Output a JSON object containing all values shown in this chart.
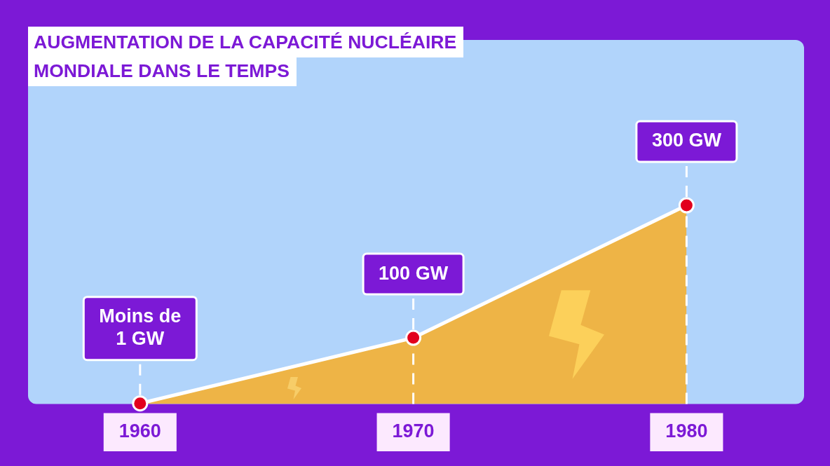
{
  "chart_data": {
    "type": "area",
    "title": "AUGMENTATION DE LA CAPACITÉ NUCLÉAIRE MONDIALE DANS LE TEMPS",
    "x": [
      1960,
      1970,
      1980
    ],
    "values": [
      1,
      100,
      300
    ],
    "value_labels": [
      "Moins de 1 GW",
      "100 GW",
      "300 GW"
    ],
    "color": "#eeb446",
    "xlim": [
      1955.9,
      1984.3
    ],
    "xticks": [
      1960,
      1970,
      1980
    ],
    "tick_labels": "x",
    "marker": "circle",
    "ref_lines": [
      {
        "axis": "x",
        "value": 1960,
        "color": "#ffffff",
        "line_style": "dashed"
      },
      {
        "axis": "x",
        "value": 1970,
        "color": "#ffffff",
        "line_style": "dashed"
      },
      {
        "axis": "x",
        "value": 1980,
        "color": "#ffffff",
        "line_style": "dashed"
      }
    ]
  }
}
